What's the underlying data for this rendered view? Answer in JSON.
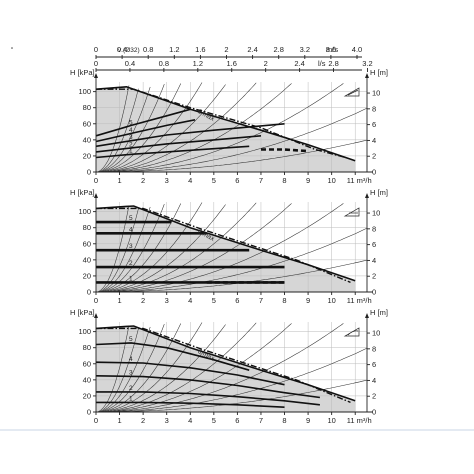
{
  "top_scales": {
    "v_label": "v (Ø32)",
    "v_ticks": [
      "0",
      "0.4",
      "0.8",
      "1.2",
      "1.6",
      "2",
      "2.4",
      "2.8",
      "3.2",
      "3.6",
      "4.0"
    ],
    "v_unit": "m/s",
    "q_ticks": [
      "0",
      "0.4",
      "0.8",
      "1.2",
      "1.6",
      "2",
      "2.4",
      "2.8",
      "3.2"
    ],
    "q_unit": "l/s"
  },
  "chart_data": [
    {
      "type": "line",
      "mode": "proportional-pressure",
      "ylabel": "H [kPa]",
      "y2label": "H [m]",
      "xlabel": "m³/h",
      "x_ticks": [
        "0",
        "1",
        "2",
        "3",
        "4",
        "5",
        "6",
        "7",
        "8",
        "9",
        "10",
        "11"
      ],
      "y_ticks": [
        "0",
        "20",
        "40",
        "60",
        "80",
        "100"
      ],
      "y2_ticks": [
        "0",
        "2",
        "4",
        "6",
        "8",
        "10"
      ],
      "xlim": [
        0,
        11.5
      ],
      "ylim": [
        0,
        112
      ],
      "y2lim": [
        0,
        11.4
      ],
      "max_label": "6 max",
      "series": [
        {
          "name": "1",
          "points": [
            [
              0,
              18
            ],
            [
              1.5,
              22
            ],
            [
              3,
              25
            ],
            [
              5,
              29
            ],
            [
              6.5,
              32
            ]
          ]
        },
        {
          "name": "2",
          "points": [
            [
              0,
              25
            ],
            [
              1.5,
              30
            ],
            [
              3,
              35
            ],
            [
              5,
              40
            ],
            [
              7,
              45
            ]
          ]
        },
        {
          "name": "3",
          "points": [
            [
              0,
              32
            ],
            [
              1.5,
              39
            ],
            [
              3,
              46
            ],
            [
              5,
              52
            ],
            [
              8,
              60
            ]
          ]
        },
        {
          "name": "4",
          "points": [
            [
              0,
              38
            ],
            [
              1.5,
              48
            ],
            [
              3,
              58
            ],
            [
              4.2,
              65
            ]
          ]
        },
        {
          "name": "5",
          "points": [
            [
              0,
              45
            ],
            [
              1.5,
              58
            ],
            [
              3,
              70
            ],
            [
              4,
              78
            ]
          ]
        },
        {
          "name": "6 max",
          "points": [
            [
              0,
              103
            ],
            [
              1.3,
              106
            ],
            [
              4,
              78
            ],
            [
              7,
              52
            ],
            [
              9,
              34
            ],
            [
              11,
              14
            ]
          ]
        }
      ],
      "max_dashed": [
        [
          0,
          103
        ],
        [
          1.6,
          103
        ],
        [
          4,
          80
        ],
        [
          7,
          55
        ],
        [
          9.3,
          28
        ],
        [
          10.6,
          18
        ]
      ],
      "dashed_bottom": [
        [
          7,
          28
        ],
        [
          8,
          28
        ],
        [
          9,
          26
        ]
      ]
    },
    {
      "type": "line",
      "mode": "constant-pressure",
      "ylabel": "H [kPa]",
      "y2label": "H [m]",
      "xlabel": "m³/h",
      "x_ticks": [
        "0",
        "1",
        "2",
        "3",
        "4",
        "5",
        "6",
        "7",
        "8",
        "9",
        "10",
        "11"
      ],
      "y_ticks": [
        "0",
        "20",
        "40",
        "60",
        "80",
        "100"
      ],
      "y2_ticks": [
        "0",
        "2",
        "4",
        "6",
        "8",
        "10"
      ],
      "xlim": [
        0,
        11.5
      ],
      "ylim": [
        0,
        112
      ],
      "y2lim": [
        0,
        11.4
      ],
      "max_label": "6 max",
      "series": [
        {
          "name": "1",
          "points": [
            [
              0,
              12
            ],
            [
              8,
              12
            ]
          ]
        },
        {
          "name": "2",
          "points": [
            [
              0,
              31
            ],
            [
              8,
              31
            ]
          ]
        },
        {
          "name": "3",
          "points": [
            [
              0,
              52
            ],
            [
              6.5,
              52
            ]
          ]
        },
        {
          "name": "4",
          "points": [
            [
              0,
              73
            ],
            [
              4.7,
              73
            ]
          ]
        },
        {
          "name": "5",
          "points": [
            [
              0,
              87
            ],
            [
              3.2,
              87
            ]
          ]
        },
        {
          "name": "6 max",
          "points": [
            [
              0,
              104
            ],
            [
              1.6,
              107
            ],
            [
              4,
              80
            ],
            [
              7,
              52
            ],
            [
              9,
              34
            ],
            [
              11,
              14
            ]
          ]
        }
      ],
      "max_dashed": [
        [
          0,
          104
        ],
        [
          2,
          104
        ],
        [
          4.5,
          78
        ],
        [
          8.5,
          40
        ],
        [
          10.8,
          12
        ]
      ],
      "dashed_bottom": [
        [
          4.7,
          12
        ],
        [
          8,
          12
        ]
      ]
    },
    {
      "type": "line",
      "mode": "auto-adapt",
      "ylabel": "H [kPa]",
      "y2label": "H [m]",
      "xlabel": "m³/h",
      "x_ticks": [
        "0",
        "1",
        "2",
        "3",
        "4",
        "5",
        "6",
        "7",
        "8",
        "9",
        "10",
        "11"
      ],
      "y_ticks": [
        "0",
        "20",
        "40",
        "60",
        "80",
        "100"
      ],
      "y2_ticks": [
        "0",
        "2",
        "4",
        "6",
        "8",
        "10"
      ],
      "xlim": [
        0,
        11.5
      ],
      "ylim": [
        0,
        112
      ],
      "y2lim": [
        0,
        11.4
      ],
      "max_label": "6 max",
      "series": [
        {
          "name": "1",
          "points": [
            [
              0,
              12
            ],
            [
              2,
              12
            ],
            [
              4,
              11
            ],
            [
              6,
              9
            ],
            [
              8,
              6
            ]
          ]
        },
        {
          "name": "2",
          "points": [
            [
              0,
              25
            ],
            [
              2,
              25
            ],
            [
              4,
              23
            ],
            [
              6,
              19
            ],
            [
              8,
              14
            ],
            [
              9.5,
              9
            ]
          ]
        },
        {
          "name": "3",
          "points": [
            [
              0,
              45
            ],
            [
              2,
              44
            ],
            [
              4,
              40
            ],
            [
              6,
              33
            ],
            [
              8,
              24
            ],
            [
              9.5,
              18
            ]
          ]
        },
        {
          "name": "4",
          "points": [
            [
              0,
              62
            ],
            [
              2,
              61
            ],
            [
              4,
              55
            ],
            [
              6,
              46
            ],
            [
              8,
              34
            ]
          ]
        },
        {
          "name": "5",
          "points": [
            [
              0,
              84
            ],
            [
              1.5,
              86
            ],
            [
              3,
              80
            ],
            [
              5,
              65
            ],
            [
              6.5,
              52
            ]
          ]
        },
        {
          "name": "6 max",
          "points": [
            [
              0,
              104
            ],
            [
              1.6,
              107
            ],
            [
              4,
              80
            ],
            [
              7,
              52
            ],
            [
              9,
              34
            ],
            [
              11,
              14
            ]
          ]
        }
      ],
      "max_dashed": [
        [
          0,
          104
        ],
        [
          2,
          104
        ],
        [
          4.5,
          78
        ],
        [
          8.5,
          40
        ],
        [
          10.8,
          12
        ]
      ],
      "dashed_bottom": []
    }
  ]
}
